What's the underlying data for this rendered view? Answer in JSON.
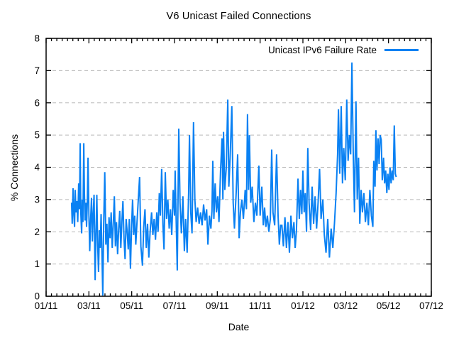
{
  "colors": {
    "series": "#0a81f3",
    "grid": "#b8b8b8",
    "axis": "#000000",
    "background": "#ffffff"
  },
  "chart_data": {
    "type": "line",
    "title": "V6 Unicast Failed Connections",
    "xlabel": "Date",
    "ylabel": "% Connections",
    "ylim": [
      0,
      8
    ],
    "y_ticks": [
      0,
      1,
      2,
      3,
      4,
      5,
      6,
      7,
      8
    ],
    "x_range_months": 18,
    "x_tick_labels": [
      "01/11",
      "03/11",
      "05/11",
      "07/11",
      "09/11",
      "11/11",
      "01/12",
      "03/12",
      "05/12",
      "07/12"
    ],
    "x_major_step_months": 2,
    "x_minor_step_months": 0.25,
    "grid": "horizontal-dashed",
    "legend_position": "top-right-inside",
    "series": [
      {
        "name": "Unicast IPv6 Failure Rate",
        "color": "#0a81f3",
        "x_unit": "months since 01/11",
        "points": [
          [
            1.19,
            2.9
          ],
          [
            1.22,
            2.25
          ],
          [
            1.26,
            3.35
          ],
          [
            1.3,
            2.5
          ],
          [
            1.33,
            2.15
          ],
          [
            1.36,
            3.3
          ],
          [
            1.4,
            2.6
          ],
          [
            1.44,
            2.95
          ],
          [
            1.48,
            2.3
          ],
          [
            1.52,
            3.5
          ],
          [
            1.56,
            2.7
          ],
          [
            1.59,
            4.75
          ],
          [
            1.62,
            2.6
          ],
          [
            1.66,
            1.95
          ],
          [
            1.69,
            3.0
          ],
          [
            1.72,
            2.3
          ],
          [
            1.76,
            4.75
          ],
          [
            1.79,
            3.2
          ],
          [
            1.82,
            2.35
          ],
          [
            1.86,
            2.9
          ],
          [
            1.89,
            2.15
          ],
          [
            1.93,
            3.0
          ],
          [
            1.96,
            4.3
          ],
          [
            2.0,
            2.55
          ],
          [
            2.04,
            1.4
          ],
          [
            2.08,
            2.35
          ],
          [
            2.12,
            3.05
          ],
          [
            2.16,
            1.7
          ],
          [
            2.2,
            2.55
          ],
          [
            2.24,
            3.15
          ],
          [
            2.29,
            0.5
          ],
          [
            2.33,
            1.95
          ],
          [
            2.37,
            3.15
          ],
          [
            2.41,
            1.6
          ],
          [
            2.45,
            0.75
          ],
          [
            2.49,
            2.05
          ],
          [
            2.53,
            1.5
          ],
          [
            2.57,
            2.55
          ],
          [
            2.61,
            1.35
          ],
          [
            2.65,
            0.02
          ],
          [
            2.69,
            2.2
          ],
          [
            2.74,
            3.85
          ],
          [
            2.79,
            1.6
          ],
          [
            2.84,
            2.25
          ],
          [
            2.89,
            1.05
          ],
          [
            2.94,
            2.45
          ],
          [
            2.99,
            1.8
          ],
          [
            3.04,
            2.6
          ],
          [
            3.09,
            1.5
          ],
          [
            3.14,
            2.25
          ],
          [
            3.19,
            3.1
          ],
          [
            3.24,
            1.55
          ],
          [
            3.29,
            2.3
          ],
          [
            3.34,
            1.3
          ],
          [
            3.39,
            2.1
          ],
          [
            3.44,
            2.65
          ],
          [
            3.49,
            1.5
          ],
          [
            3.54,
            2.3
          ],
          [
            3.59,
            2.95
          ],
          [
            3.64,
            1.8
          ],
          [
            3.69,
            1.15
          ],
          [
            3.74,
            2.4
          ],
          [
            3.79,
            2.0
          ],
          [
            3.84,
            1.45
          ],
          [
            3.89,
            2.4
          ],
          [
            3.94,
            0.85
          ],
          [
            3.99,
            2.1
          ],
          [
            4.04,
            3.0
          ],
          [
            4.09,
            1.9
          ],
          [
            4.14,
            2.5
          ],
          [
            4.19,
            1.6
          ],
          [
            4.24,
            2.2
          ],
          [
            4.3,
            2.9
          ],
          [
            4.37,
            3.7
          ],
          [
            4.43,
            1.55
          ],
          [
            4.5,
            0.95
          ],
          [
            4.56,
            2.15
          ],
          [
            4.62,
            2.7
          ],
          [
            4.68,
            1.5
          ],
          [
            4.74,
            2.25
          ],
          [
            4.8,
            1.2
          ],
          [
            4.86,
            2.0
          ],
          [
            4.93,
            2.6
          ],
          [
            4.99,
            1.9
          ],
          [
            5.05,
            2.4
          ],
          [
            5.11,
            1.75
          ],
          [
            5.17,
            2.6
          ],
          [
            5.23,
            2.0
          ],
          [
            5.29,
            3.2
          ],
          [
            5.34,
            2.5
          ],
          [
            5.4,
            3.95
          ],
          [
            5.46,
            2.2
          ],
          [
            5.51,
            1.45
          ],
          [
            5.57,
            3.85
          ],
          [
            5.63,
            2.4
          ],
          [
            5.69,
            3.0
          ],
          [
            5.75,
            2.1
          ],
          [
            5.81,
            2.7
          ],
          [
            5.87,
            1.9
          ],
          [
            5.94,
            3.3
          ],
          [
            6.0,
            2.5
          ],
          [
            6.03,
            3.9
          ],
          [
            6.08,
            2.3
          ],
          [
            6.13,
            0.8
          ],
          [
            6.2,
            5.2
          ],
          [
            6.26,
            2.9
          ],
          [
            6.32,
            1.95
          ],
          [
            6.39,
            3.1
          ],
          [
            6.46,
            1.4
          ],
          [
            6.52,
            2.4
          ],
          [
            6.59,
            1.35
          ],
          [
            6.66,
            3.2
          ],
          [
            6.7,
            5.0
          ],
          [
            6.76,
            2.6
          ],
          [
            6.82,
            1.95
          ],
          [
            6.89,
            5.4
          ],
          [
            6.95,
            3.0
          ],
          [
            7.01,
            2.3
          ],
          [
            7.08,
            2.75
          ],
          [
            7.15,
            2.25
          ],
          [
            7.22,
            2.6
          ],
          [
            7.29,
            2.2
          ],
          [
            7.36,
            2.85
          ],
          [
            7.43,
            2.35
          ],
          [
            7.5,
            2.7
          ],
          [
            7.56,
            1.6
          ],
          [
            7.63,
            2.5
          ],
          [
            7.7,
            2.1
          ],
          [
            7.75,
            2.65
          ],
          [
            7.79,
            4.2
          ],
          [
            7.84,
            2.4
          ],
          [
            7.9,
            3.5
          ],
          [
            7.96,
            2.6
          ],
          [
            8.02,
            3.1
          ],
          [
            8.08,
            2.3
          ],
          [
            8.15,
            3.9
          ],
          [
            8.22,
            4.9
          ],
          [
            8.26,
            3.0
          ],
          [
            8.29,
            5.1
          ],
          [
            8.35,
            3.3
          ],
          [
            8.42,
            4.0
          ],
          [
            8.49,
            6.1
          ],
          [
            8.54,
            3.4
          ],
          [
            8.6,
            4.3
          ],
          [
            8.68,
            5.9
          ],
          [
            8.74,
            2.9
          ],
          [
            8.8,
            2.1
          ],
          [
            8.88,
            3.2
          ],
          [
            8.95,
            4.4
          ],
          [
            9.02,
            1.8
          ],
          [
            9.08,
            2.6
          ],
          [
            9.15,
            3.0
          ],
          [
            9.22,
            2.4
          ],
          [
            9.3,
            3.3
          ],
          [
            9.36,
            2.7
          ],
          [
            9.41,
            5.65
          ],
          [
            9.46,
            3.3
          ],
          [
            9.5,
            5.0
          ],
          [
            9.56,
            2.9
          ],
          [
            9.63,
            3.4
          ],
          [
            9.71,
            2.3
          ],
          [
            9.78,
            2.9
          ],
          [
            9.85,
            2.5
          ],
          [
            9.94,
            4.05
          ],
          [
            10.0,
            2.5
          ],
          [
            10.08,
            3.4
          ],
          [
            10.15,
            2.2
          ],
          [
            10.21,
            2.75
          ],
          [
            10.27,
            2.15
          ],
          [
            10.34,
            2.5
          ],
          [
            10.41,
            2.0
          ],
          [
            10.48,
            2.4
          ],
          [
            10.54,
            4.55
          ],
          [
            10.6,
            2.6
          ],
          [
            10.68,
            2.2
          ],
          [
            10.77,
            4.4
          ],
          [
            10.84,
            2.5
          ],
          [
            10.9,
            1.6
          ],
          [
            10.96,
            2.2
          ],
          [
            11.02,
            2.2
          ],
          [
            11.09,
            1.55
          ],
          [
            11.16,
            2.45
          ],
          [
            11.23,
            1.5
          ],
          [
            11.3,
            2.3
          ],
          [
            11.37,
            1.35
          ],
          [
            11.44,
            2.5
          ],
          [
            11.51,
            1.8
          ],
          [
            11.58,
            2.3
          ],
          [
            11.64,
            1.5
          ],
          [
            11.7,
            2.05
          ],
          [
            11.77,
            3.65
          ],
          [
            11.83,
            2.4
          ],
          [
            11.89,
            3.3
          ],
          [
            11.95,
            2.55
          ],
          [
            12.0,
            3.9
          ],
          [
            12.06,
            2.6
          ],
          [
            12.11,
            3.2
          ],
          [
            12.17,
            2.0
          ],
          [
            12.23,
            4.6
          ],
          [
            12.29,
            2.9
          ],
          [
            12.36,
            2.05
          ],
          [
            12.43,
            3.4
          ],
          [
            12.5,
            2.25
          ],
          [
            12.57,
            3.1
          ],
          [
            12.64,
            2.1
          ],
          [
            12.71,
            2.9
          ],
          [
            12.78,
            3.95
          ],
          [
            12.85,
            2.4
          ],
          [
            12.93,
            3.0
          ],
          [
            13.0,
            1.9
          ],
          [
            13.08,
            1.35
          ],
          [
            13.16,
            2.4
          ],
          [
            13.24,
            1.2
          ],
          [
            13.32,
            2.1
          ],
          [
            13.4,
            1.5
          ],
          [
            13.48,
            2.3
          ],
          [
            13.55,
            3.2
          ],
          [
            13.62,
            4.4
          ],
          [
            13.66,
            5.8
          ],
          [
            13.72,
            3.8
          ],
          [
            13.79,
            5.9
          ],
          [
            13.85,
            3.5
          ],
          [
            13.91,
            4.6
          ],
          [
            13.98,
            3.6
          ],
          [
            14.05,
            6.1
          ],
          [
            14.11,
            4.2
          ],
          [
            14.17,
            5.0
          ],
          [
            14.23,
            4.4
          ],
          [
            14.29,
            7.25
          ],
          [
            14.35,
            4.5
          ],
          [
            14.41,
            2.6
          ],
          [
            14.48,
            6.05
          ],
          [
            14.54,
            3.0
          ],
          [
            14.6,
            4.3
          ],
          [
            14.66,
            2.25
          ],
          [
            14.72,
            3.3
          ],
          [
            14.78,
            2.6
          ],
          [
            14.85,
            3.2
          ],
          [
            14.92,
            2.3
          ],
          [
            14.99,
            2.9
          ],
          [
            15.06,
            2.2
          ],
          [
            15.13,
            3.3
          ],
          [
            15.2,
            2.5
          ],
          [
            15.27,
            2.15
          ],
          [
            15.31,
            4.2
          ],
          [
            15.37,
            3.4
          ],
          [
            15.41,
            5.15
          ],
          [
            15.46,
            3.9
          ],
          [
            15.51,
            4.9
          ],
          [
            15.56,
            4.1
          ],
          [
            15.61,
            5.0
          ],
          [
            15.66,
            4.85
          ],
          [
            15.71,
            3.6
          ],
          [
            15.77,
            4.3
          ],
          [
            15.82,
            3.5
          ],
          [
            15.87,
            3.9
          ],
          [
            15.92,
            3.2
          ],
          [
            15.97,
            3.8
          ],
          [
            16.02,
            3.3
          ],
          [
            16.07,
            4.0
          ],
          [
            16.12,
            3.5
          ],
          [
            16.17,
            3.9
          ],
          [
            16.22,
            3.6
          ],
          [
            16.27,
            5.3
          ],
          [
            16.32,
            3.8
          ],
          [
            16.36,
            3.7
          ]
        ]
      }
    ]
  }
}
